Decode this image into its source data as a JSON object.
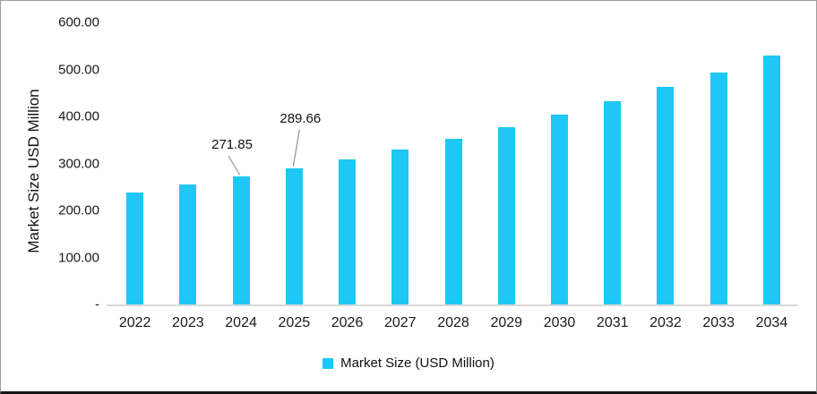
{
  "chart_data": {
    "type": "bar",
    "title": "",
    "ylabel": "Market Size USD Million",
    "xlabel": "",
    "categories": [
      "2022",
      "2023",
      "2024",
      "2025",
      "2026",
      "2027",
      "2028",
      "2029",
      "2030",
      "2031",
      "2032",
      "2033",
      "2034"
    ],
    "values": [
      238.5,
      255.5,
      271.85,
      289.66,
      309.5,
      329,
      352.5,
      377,
      403,
      432,
      462.5,
      494,
      530.5
    ],
    "ylim": [
      0,
      600
    ],
    "yticks": [
      "600.00",
      "500.00",
      "400.00",
      "300.00",
      "200.00",
      "100.00",
      "-"
    ],
    "grid": "off",
    "legend": "Market Size (USD Million)",
    "legend_position": "bottom-center",
    "bar_color": "#1EC7F5",
    "axis_line_color": "#D9D9D9",
    "leader_line_color": "#A6A6A6",
    "point_labels": [
      {
        "category": "2024",
        "text": "271.85"
      },
      {
        "category": "2025",
        "text": "289.66"
      }
    ]
  }
}
